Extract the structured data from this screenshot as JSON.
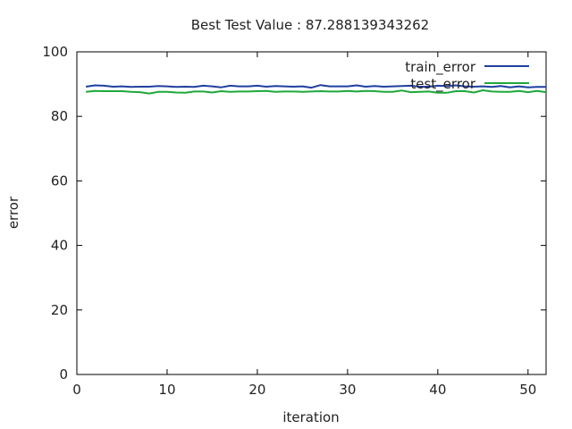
{
  "chart_data": {
    "type": "line",
    "title": "Best Test Value : 87.288139343262",
    "xlabel": "iteration",
    "ylabel": "error",
    "xlim": [
      0,
      52
    ],
    "ylim": [
      0,
      100
    ],
    "xticks": [
      0,
      10,
      20,
      30,
      40,
      50
    ],
    "yticks": [
      0,
      20,
      40,
      60,
      80,
      100
    ],
    "grid": false,
    "legend_position": "top-right",
    "x": [
      1,
      2,
      3,
      4,
      5,
      6,
      7,
      8,
      9,
      10,
      11,
      12,
      13,
      14,
      15,
      16,
      17,
      18,
      19,
      20,
      21,
      22,
      23,
      24,
      25,
      26,
      27,
      28,
      29,
      30,
      31,
      32,
      33,
      34,
      35,
      36,
      37,
      38,
      39,
      40,
      41,
      42,
      43,
      44,
      45,
      46,
      47,
      48,
      49,
      50,
      51,
      52
    ],
    "series": [
      {
        "name": "train_error",
        "color": "#1f3fa0",
        "values": [
          89.2,
          89.6,
          89.5,
          89.2,
          89.3,
          89.1,
          89.2,
          89.2,
          89.4,
          89.3,
          89.1,
          89.2,
          89.1,
          89.5,
          89.3,
          89.0,
          89.5,
          89.3,
          89.3,
          89.5,
          89.2,
          89.4,
          89.3,
          89.2,
          89.3,
          88.9,
          89.7,
          89.3,
          89.3,
          89.3,
          89.6,
          89.2,
          89.4,
          89.2,
          89.3,
          89.4,
          89.5,
          89.2,
          89.2,
          89.5,
          89.4,
          89.6,
          89.3,
          89.2,
          89.3,
          89.1,
          89.4,
          89.0,
          89.3,
          89.0,
          89.1,
          89.1
        ]
      },
      {
        "name": "test_error",
        "color": "#1fa83a",
        "values": [
          87.6,
          87.9,
          87.8,
          87.8,
          87.8,
          87.6,
          87.5,
          87.1,
          87.6,
          87.6,
          87.4,
          87.3,
          87.7,
          87.7,
          87.4,
          87.8,
          87.6,
          87.7,
          87.7,
          87.8,
          87.9,
          87.6,
          87.7,
          87.7,
          87.6,
          87.7,
          87.8,
          87.7,
          87.7,
          87.9,
          87.7,
          87.9,
          87.8,
          87.6,
          87.6,
          88.0,
          87.5,
          87.6,
          87.7,
          87.3,
          87.3,
          87.8,
          87.8,
          87.4,
          88.1,
          87.7,
          87.6,
          87.6,
          87.9,
          87.5,
          87.9,
          87.5
        ]
      }
    ]
  }
}
